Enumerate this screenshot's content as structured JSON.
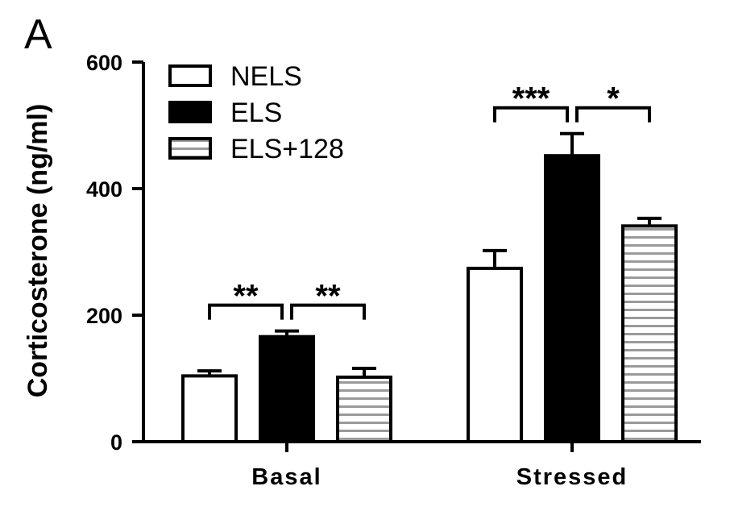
{
  "panel_label": "A",
  "colors": {
    "axis": "#000000",
    "NELS": "#ffffff",
    "ELS": "#000000",
    "ELS+128": "#ffffff",
    "stripe": "#9a9a9a"
  },
  "chart_data": {
    "type": "bar",
    "title": "",
    "xlabel": "",
    "ylabel": "Corticosterone (ng/ml)",
    "ylim": [
      0,
      600
    ],
    "yticks": [
      0,
      200,
      400,
      600
    ],
    "categories": [
      "Basal",
      "Stressed"
    ],
    "legend_position": "top-left",
    "series": [
      {
        "name": "NELS",
        "fill": "open",
        "values": [
          104,
          274
        ],
        "errors": [
          8,
          28
        ]
      },
      {
        "name": "ELS",
        "fill": "solid",
        "values": [
          166,
          452
        ],
        "errors": [
          9,
          35
        ]
      },
      {
        "name": "ELS+128",
        "fill": "horizontal-stripes",
        "values": [
          102,
          341
        ],
        "errors": [
          14,
          12
        ]
      }
    ],
    "annotations": [
      {
        "group": "Basal",
        "from": "NELS",
        "to": "ELS",
        "text": "**"
      },
      {
        "group": "Basal",
        "from": "ELS",
        "to": "ELS+128",
        "text": "**"
      },
      {
        "group": "Stressed",
        "from": "NELS",
        "to": "ELS",
        "text": "***"
      },
      {
        "group": "Stressed",
        "from": "ELS",
        "to": "ELS+128",
        "text": "*"
      }
    ]
  }
}
